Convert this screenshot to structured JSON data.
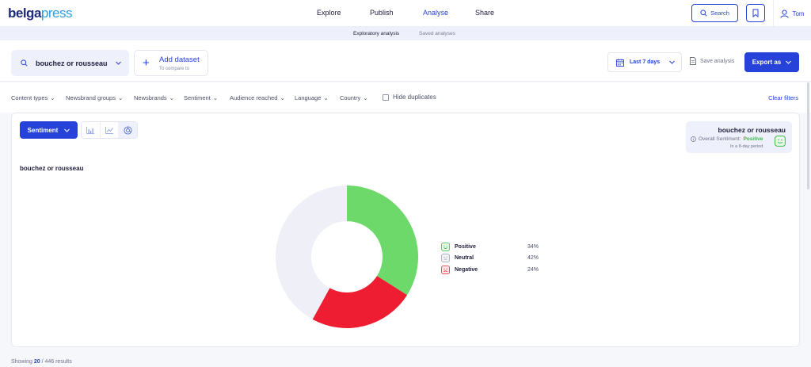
{
  "brand": {
    "part1": "belga",
    "part2": "press"
  },
  "nav": {
    "items": [
      {
        "label": "Explore",
        "active": false
      },
      {
        "label": "Publish",
        "active": false
      },
      {
        "label": "Analyse",
        "active": true
      },
      {
        "label": "Share",
        "active": false
      }
    ]
  },
  "header": {
    "search_label": "Search",
    "user_name": "Tom"
  },
  "subnav": {
    "tabs": [
      {
        "label": "Exploratory analysis",
        "active": true
      },
      {
        "label": "Saved analyses",
        "active": false
      }
    ]
  },
  "dataset": {
    "query": "bouchez or rousseau",
    "add_title": "Add dataset",
    "add_subtitle": "To compare to",
    "date_range": "Last 7 days",
    "save_label": "Save analysis",
    "export_label": "Export as"
  },
  "filters": {
    "items": [
      "Content types",
      "Newsbrand groups",
      "Newsbrands",
      "Sentiment",
      "Audience reached",
      "Language",
      "Country"
    ],
    "hide_duplicates": "Hide duplicates",
    "hide_duplicates_checked": false,
    "clear_label": "Clear filters"
  },
  "card": {
    "metric_label": "Sentiment",
    "title": "bouchez or rousseau",
    "summary": {
      "title": "bouchez or rousseau",
      "overall_prefix": "Overall Sentiment:",
      "overall_value": "Positive",
      "period": "In a 8-day period"
    }
  },
  "chart_data": {
    "type": "pie",
    "donut": true,
    "categories": [
      "Positive",
      "Neutral",
      "Negative"
    ],
    "values": [
      34,
      42,
      24
    ],
    "value_labels": [
      "34%",
      "42%",
      "24%"
    ],
    "colors": [
      "#6cd96a",
      "#efeff8",
      "#ee1d32"
    ],
    "icon_colors": [
      "#3cb94a",
      "#9a9cb0",
      "#ee1d32"
    ],
    "plot_order": [
      "Positive",
      "Negative",
      "Neutral"
    ],
    "start_angle_deg": 0,
    "clockwise": true
  },
  "results": {
    "shown": "20",
    "separator": "/",
    "total": "446 results",
    "prefix": "Showing"
  },
  "colors": {
    "accent": "#2742d8",
    "positive": "#3cb94a",
    "negative": "#ee1d32"
  }
}
